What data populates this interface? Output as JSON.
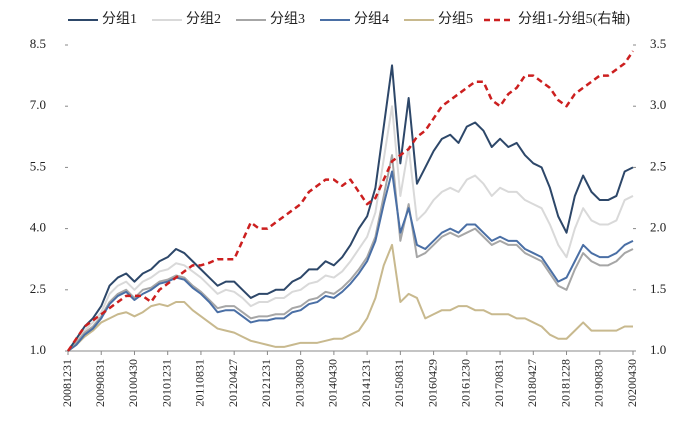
{
  "chart_data": {
    "type": "line",
    "categories": [
      "20081231",
      null,
      null,
      null,
      "20090831",
      null,
      null,
      null,
      "20100430",
      null,
      null,
      null,
      "20101231",
      null,
      null,
      null,
      "20110831",
      null,
      null,
      null,
      "20120427",
      null,
      null,
      null,
      "20121231",
      null,
      null,
      null,
      "20130830",
      null,
      null,
      null,
      "20140430",
      null,
      null,
      null,
      "20141231",
      null,
      null,
      null,
      "20150831",
      null,
      null,
      null,
      "20160429",
      null,
      null,
      null,
      "20161230",
      null,
      null,
      null,
      "20170831",
      null,
      null,
      null,
      "20180427",
      null,
      null,
      null,
      "20181228",
      null,
      null,
      null,
      "20190830",
      null,
      null,
      null,
      "20200430"
    ],
    "ylim": [
      1.0,
      8.5
    ],
    "yticks": [
      {
        "value": 1.0,
        "label": "1.0"
      },
      {
        "value": 2.5,
        "label": "2.5"
      },
      {
        "value": 4.0,
        "label": "4.0"
      },
      {
        "value": 5.5,
        "label": "5.5"
      },
      {
        "value": 7.0,
        "label": "7.0"
      },
      {
        "value": 8.5,
        "label": "8.5"
      }
    ],
    "y2lim": [
      1.0,
      3.5
    ],
    "y2ticks": [
      {
        "value": 1.0,
        "label": "1.0"
      },
      {
        "value": 1.5,
        "label": "1.5"
      },
      {
        "value": 2.0,
        "label": "2.0"
      },
      {
        "value": 2.5,
        "label": "2.5"
      },
      {
        "value": 3.0,
        "label": "3.0"
      },
      {
        "value": 3.5,
        "label": "3.5"
      }
    ],
    "grid": false,
    "legend": "top",
    "series": [
      {
        "name": "分组1",
        "color": "#2d4769",
        "values": [
          1.0,
          1.3,
          1.6,
          1.8,
          2.1,
          2.6,
          2.8,
          2.9,
          2.7,
          2.9,
          3.0,
          3.2,
          3.3,
          3.5,
          3.4,
          3.2,
          3.0,
          2.8,
          2.6,
          2.7,
          2.7,
          2.5,
          2.3,
          2.4,
          2.4,
          2.5,
          2.5,
          2.7,
          2.8,
          3.0,
          3.0,
          3.2,
          3.1,
          3.3,
          3.6,
          4.0,
          4.3,
          5.0,
          6.5,
          8.0,
          5.6,
          7.2,
          5.1,
          5.5,
          5.9,
          6.2,
          6.3,
          6.1,
          6.5,
          6.6,
          6.4,
          6.0,
          6.2,
          6.0,
          6.1,
          5.8,
          5.6,
          5.5,
          5.0,
          4.3,
          3.9,
          4.8,
          5.3,
          4.9,
          4.7,
          4.7,
          4.8,
          5.4,
          5.5
        ]
      },
      {
        "name": "分组2",
        "color": "#d9d9d9",
        "values": [
          1.0,
          1.25,
          1.5,
          1.7,
          1.95,
          2.4,
          2.6,
          2.7,
          2.5,
          2.7,
          2.8,
          2.95,
          3.0,
          3.15,
          3.1,
          2.95,
          2.8,
          2.6,
          2.4,
          2.5,
          2.45,
          2.3,
          2.1,
          2.2,
          2.2,
          2.3,
          2.3,
          2.45,
          2.5,
          2.65,
          2.7,
          2.85,
          2.8,
          2.95,
          3.2,
          3.5,
          3.8,
          4.4,
          5.7,
          7.0,
          4.8,
          6.0,
          4.2,
          4.4,
          4.7,
          4.9,
          5.0,
          4.9,
          5.2,
          5.3,
          5.1,
          4.8,
          5.0,
          4.9,
          4.9,
          4.7,
          4.6,
          4.5,
          4.1,
          3.6,
          3.3,
          4.0,
          4.5,
          4.2,
          4.1,
          4.1,
          4.2,
          4.7,
          4.8
        ]
      },
      {
        "name": "分组3",
        "color": "#a6a6a6",
        "values": [
          1.0,
          1.2,
          1.45,
          1.6,
          1.85,
          2.2,
          2.4,
          2.5,
          2.3,
          2.5,
          2.55,
          2.7,
          2.75,
          2.85,
          2.8,
          2.6,
          2.45,
          2.25,
          2.05,
          2.1,
          2.1,
          1.95,
          1.8,
          1.85,
          1.85,
          1.9,
          1.9,
          2.05,
          2.1,
          2.25,
          2.3,
          2.45,
          2.4,
          2.55,
          2.75,
          3.0,
          3.3,
          3.8,
          4.8,
          5.8,
          3.7,
          4.6,
          3.3,
          3.4,
          3.6,
          3.8,
          3.9,
          3.8,
          3.9,
          4.0,
          3.8,
          3.6,
          3.7,
          3.6,
          3.6,
          3.4,
          3.3,
          3.2,
          2.9,
          2.6,
          2.5,
          3.0,
          3.4,
          3.2,
          3.1,
          3.1,
          3.2,
          3.4,
          3.5
        ]
      },
      {
        "name": "分组4",
        "color": "#4a6fa5",
        "values": [
          1.0,
          1.15,
          1.4,
          1.55,
          1.8,
          2.15,
          2.35,
          2.45,
          2.25,
          2.4,
          2.5,
          2.65,
          2.7,
          2.8,
          2.75,
          2.55,
          2.4,
          2.2,
          1.95,
          2.0,
          2.0,
          1.85,
          1.7,
          1.75,
          1.75,
          1.8,
          1.8,
          1.95,
          2.0,
          2.15,
          2.2,
          2.35,
          2.3,
          2.45,
          2.65,
          2.9,
          3.2,
          3.7,
          4.6,
          5.4,
          3.9,
          4.5,
          3.6,
          3.5,
          3.7,
          3.9,
          4.0,
          3.9,
          4.1,
          4.1,
          3.9,
          3.7,
          3.8,
          3.7,
          3.7,
          3.5,
          3.4,
          3.3,
          3.0,
          2.7,
          2.8,
          3.2,
          3.6,
          3.4,
          3.3,
          3.3,
          3.4,
          3.6,
          3.7
        ]
      },
      {
        "name": "分组5",
        "color": "#c8b98e",
        "values": [
          1.0,
          1.15,
          1.35,
          1.5,
          1.7,
          1.8,
          1.9,
          1.95,
          1.85,
          1.95,
          2.1,
          2.15,
          2.1,
          2.2,
          2.2,
          2.0,
          1.85,
          1.7,
          1.55,
          1.5,
          1.45,
          1.35,
          1.25,
          1.2,
          1.15,
          1.1,
          1.1,
          1.15,
          1.2,
          1.2,
          1.2,
          1.25,
          1.3,
          1.3,
          1.4,
          1.5,
          1.8,
          2.3,
          3.1,
          3.6,
          2.2,
          2.4,
          2.3,
          1.8,
          1.9,
          2.0,
          2.0,
          2.1,
          2.1,
          2.0,
          2.0,
          1.9,
          1.9,
          1.9,
          1.8,
          1.8,
          1.7,
          1.6,
          1.4,
          1.3,
          1.3,
          1.5,
          1.7,
          1.5,
          1.5,
          1.5,
          1.5,
          1.6,
          1.6
        ]
      },
      {
        "name": "分组1-分组5(右轴)",
        "color": "#cc1f1f",
        "axis": "y2",
        "dashed": true,
        "values": [
          1.0,
          1.1,
          1.2,
          1.25,
          1.3,
          1.35,
          1.4,
          1.45,
          1.45,
          1.45,
          1.4,
          1.5,
          1.55,
          1.6,
          1.65,
          1.7,
          1.7,
          1.72,
          1.75,
          1.75,
          1.75,
          1.9,
          2.05,
          2.0,
          2.0,
          2.05,
          2.1,
          2.15,
          2.2,
          2.3,
          2.35,
          2.4,
          2.4,
          2.35,
          2.4,
          2.3,
          2.2,
          2.25,
          2.4,
          2.55,
          2.6,
          2.65,
          2.75,
          2.8,
          2.9,
          3.0,
          3.05,
          3.1,
          3.15,
          3.2,
          3.2,
          3.05,
          3.0,
          3.1,
          3.15,
          3.25,
          3.25,
          3.2,
          3.15,
          3.05,
          3.0,
          3.1,
          3.15,
          3.2,
          3.25,
          3.25,
          3.3,
          3.35,
          3.45
        ]
      }
    ]
  }
}
